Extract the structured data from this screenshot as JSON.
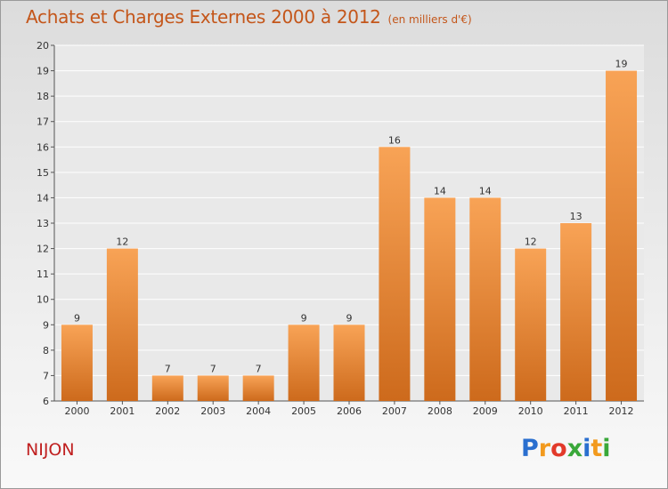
{
  "title": "Achats et Charges Externes 2000 à 2012",
  "subtitle": "(en milliers d'€)",
  "place": "NIJON",
  "logo": {
    "text": "Proxiti",
    "letters": [
      "P",
      "r",
      "o",
      "x",
      "i",
      "t",
      "i"
    ],
    "colors": [
      "#2a6fcf",
      "#f29a1e",
      "#e23a2a",
      "#39a839",
      "#2a6fcf",
      "#f29a1e",
      "#39a839"
    ]
  },
  "colors": {
    "bar_top": "#f8a356",
    "bar_bottom": "#cd6a1c",
    "title": "#c4561a",
    "place": "#c02020"
  },
  "chart_data": {
    "type": "bar",
    "title": "Achats et Charges Externes 2000 à 2012",
    "subtitle": "(en milliers d'€)",
    "categories": [
      "2000",
      "2001",
      "2002",
      "2003",
      "2004",
      "2005",
      "2006",
      "2007",
      "2008",
      "2009",
      "2010",
      "2011",
      "2012"
    ],
    "values": [
      9,
      12,
      7,
      7,
      7,
      9,
      9,
      16,
      14,
      14,
      12,
      13,
      19
    ],
    "ylim": [
      6,
      20
    ],
    "yticks": [
      6,
      7,
      8,
      9,
      10,
      11,
      12,
      13,
      14,
      15,
      16,
      17,
      18,
      19,
      20
    ],
    "grid": true,
    "data_labels": true
  }
}
